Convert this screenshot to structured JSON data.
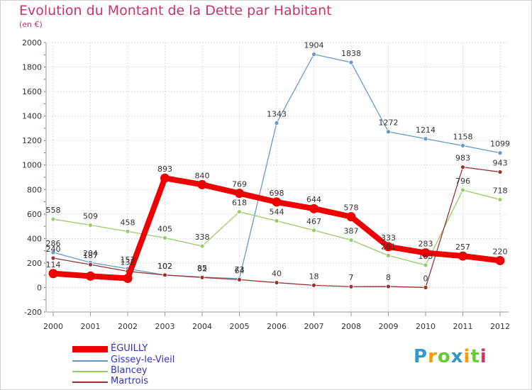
{
  "chart_data": {
    "type": "line",
    "title": "Evolution du Montant de la Dette par Habitant",
    "subtitle": "(en €)",
    "categories": [
      "2000",
      "2001",
      "2002",
      "2003",
      "2004",
      "2005",
      "2006",
      "2007",
      "2008",
      "2009",
      "2010",
      "2011",
      "2012"
    ],
    "ylim": [
      -200,
      2000
    ],
    "yticks": [
      "-200",
      "0",
      "200",
      "400",
      "600",
      "800",
      "1000",
      "1200",
      "1400",
      "1600",
      "1800",
      "2000"
    ],
    "grid": true,
    "legend_position": "bottom-left",
    "series": [
      {
        "name": "ÉGUILLY",
        "color": "#ee0000",
        "values": [
          114,
          93,
          75,
          893,
          840,
          769,
          698,
          644,
          578,
          333,
          283,
          257,
          220
        ],
        "labels": [
          "114",
          "",
          "",
          "893",
          "840",
          "769",
          "698",
          "644",
          "578",
          "333",
          "283",
          "257",
          "220"
        ]
      },
      {
        "name": "Gissey-le-Vieil",
        "color": "#6699cc",
        "values": [
          286,
          204,
          153,
          102,
          85,
          73,
          1343,
          1904,
          1838,
          1272,
          1214,
          1158,
          1099
        ],
        "labels": [
          "286",
          "204",
          "153",
          "102",
          "85",
          "73",
          "1343",
          "1904",
          "1838",
          "1272",
          "1214",
          "1158",
          "1099"
        ]
      },
      {
        "name": "Blancey",
        "color": "#99cc66",
        "values": [
          558,
          509,
          458,
          405,
          338,
          618,
          544,
          467,
          387,
          261,
          183,
          796,
          718
        ],
        "labels": [
          "558",
          "509",
          "458",
          "405",
          "338",
          "618",
          "544",
          "467",
          "387",
          "261",
          "183",
          "796",
          "718"
        ]
      },
      {
        "name": "Martrois",
        "color": "#993333",
        "values": [
          240,
          187,
          132,
          102,
          82,
          64,
          40,
          18,
          7,
          8,
          0,
          983,
          943
        ],
        "labels": [
          "240",
          "187",
          "132",
          "102",
          "82",
          "64",
          "40",
          "18",
          "7",
          "8",
          "0",
          "983",
          "943"
        ]
      }
    ]
  },
  "logo": {
    "text": "Proxiti",
    "letters": [
      "P",
      "r",
      "o",
      "x",
      "i",
      "t",
      "i"
    ],
    "colors": [
      "#3399cc",
      "#ff9900",
      "#66cc33",
      "#3399cc",
      "#ff9900",
      "#66cc33",
      "#cc3366"
    ]
  }
}
